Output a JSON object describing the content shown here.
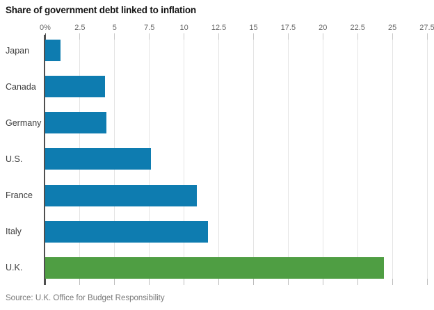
{
  "chart": {
    "title": "Share of government debt linked to inflation",
    "source": "Source: U.K. Office for Budget Responsibility"
  },
  "chart_data": {
    "type": "bar",
    "orientation": "horizontal",
    "title": "Share of government debt linked to inflation",
    "categories": [
      "Japan",
      "Canada",
      "Germany",
      "U.S.",
      "France",
      "Italy",
      "U.K."
    ],
    "values": [
      1.1,
      4.3,
      4.4,
      7.6,
      10.9,
      11.7,
      24.4
    ],
    "unit": "%",
    "xlim": [
      0,
      27.5
    ],
    "x_ticks": [
      {
        "label": "0%",
        "value": 0
      },
      {
        "label": "2.5",
        "value": 2.5
      },
      {
        "label": "5",
        "value": 5
      },
      {
        "label": "7.5",
        "value": 7.5
      },
      {
        "label": "10",
        "value": 10
      },
      {
        "label": "12.5",
        "value": 12.5
      },
      {
        "label": "15",
        "value": 15
      },
      {
        "label": "17.5",
        "value": 17.5
      },
      {
        "label": "20",
        "value": 20
      },
      {
        "label": "22.5",
        "value": 22.5
      },
      {
        "label": "25",
        "value": 25
      },
      {
        "label": "27.5",
        "value": 27.5
      }
    ],
    "bar_colors": [
      "#0e7cb0",
      "#0e7cb0",
      "#0e7cb0",
      "#0e7cb0",
      "#0e7cb0",
      "#0e7cb0",
      "#4f9e43"
    ],
    "accent_blue": "#0e7cb0",
    "accent_green": "#4f9e43",
    "gridlines": true,
    "legend": "none",
    "tick_label_position": "top",
    "source": "Source: U.K. Office for Budget Responsibility"
  }
}
